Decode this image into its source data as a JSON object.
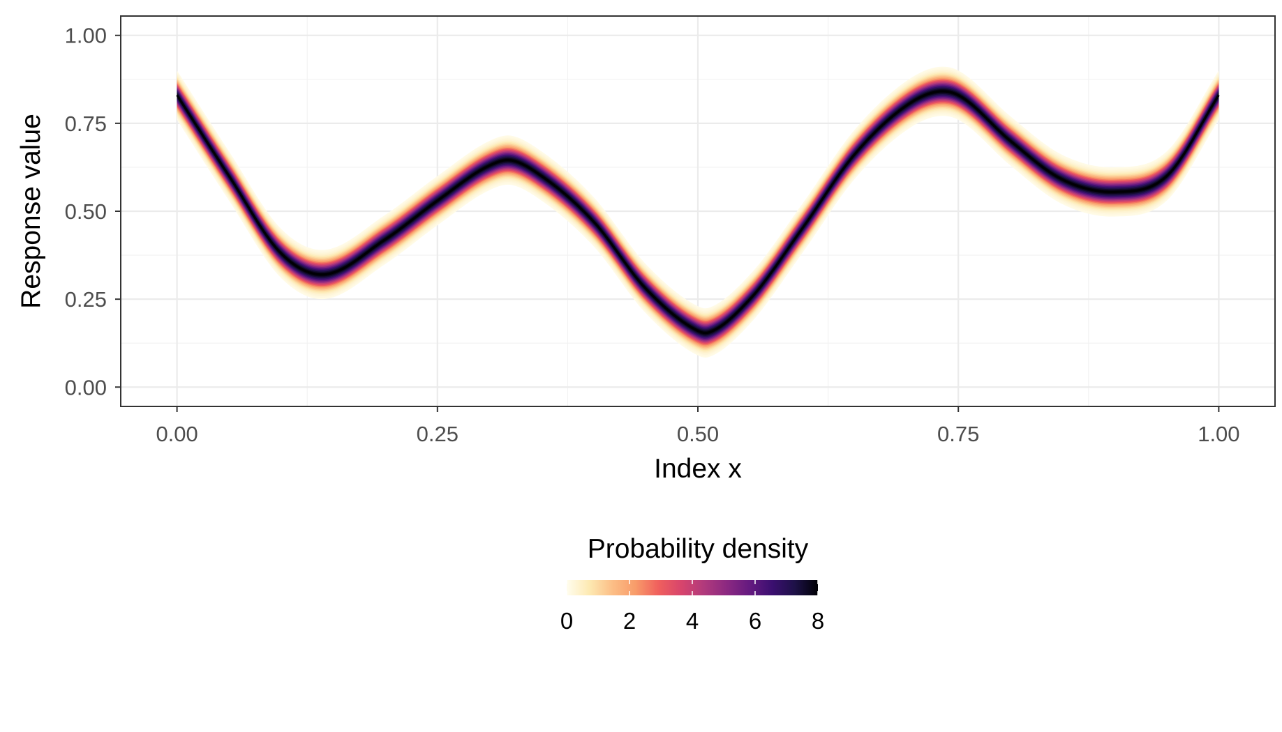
{
  "chart_data": {
    "type": "heatmap",
    "title": "",
    "xlabel": "Index x",
    "ylabel": "Response value",
    "xlim": [
      -0.054,
      1.054
    ],
    "ylim": [
      -0.055,
      1.055
    ],
    "x_ticks": [
      "0.00",
      "0.25",
      "0.50",
      "0.75",
      "1.00"
    ],
    "y_ticks": [
      "0.00",
      "0.25",
      "0.50",
      "0.75",
      "1.00"
    ],
    "x_tick_values": [
      0,
      0.25,
      0.5,
      0.75,
      1.0
    ],
    "y_tick_values": [
      0,
      0.25,
      0.5,
      0.75,
      1.0
    ],
    "grid": true,
    "mean_curve": {
      "x": [
        0.0,
        0.05,
        0.1,
        0.14,
        0.2,
        0.25,
        0.3,
        0.32,
        0.35,
        0.4,
        0.45,
        0.5,
        0.51,
        0.55,
        0.6,
        0.65,
        0.7,
        0.73,
        0.75,
        0.8,
        0.85,
        0.9,
        0.95,
        1.0
      ],
      "y": [
        0.83,
        0.6,
        0.38,
        0.32,
        0.42,
        0.53,
        0.63,
        0.645,
        0.6,
        0.47,
        0.28,
        0.16,
        0.155,
        0.25,
        0.45,
        0.66,
        0.8,
        0.84,
        0.83,
        0.7,
        0.59,
        0.555,
        0.6,
        0.83
      ]
    },
    "band_half_width": 0.07,
    "density_range": [
      0,
      8
    ],
    "legend": {
      "title": "Probability density",
      "ticks": [
        "0",
        "2",
        "4",
        "6",
        "8"
      ],
      "tick_values": [
        0,
        2,
        4,
        6,
        8
      ],
      "placement": "bottom"
    },
    "colormap": [
      "#fffdee",
      "#fde9b2",
      "#fcbe86",
      "#f89c6a",
      "#f0605d",
      "#d8456c",
      "#b13a7c",
      "#8c2981",
      "#651a80",
      "#3b0f70",
      "#1d1147",
      "#000004"
    ]
  }
}
